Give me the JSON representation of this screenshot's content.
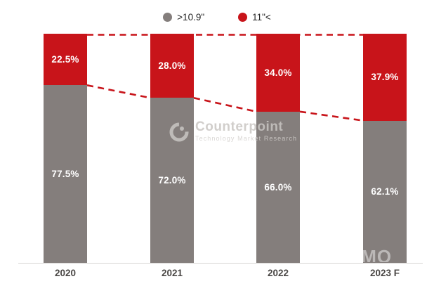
{
  "chart_data": {
    "type": "bar",
    "stacked": true,
    "stack_total": 100,
    "title": "",
    "xlabel": "",
    "ylabel": "",
    "ylim": [
      0,
      100
    ],
    "grid": false,
    "legend_position": "top-center",
    "categories": [
      "2020",
      "2021",
      "2022",
      "2023 F"
    ],
    "series": [
      {
        "name": ">10.9\"",
        "color": "#847e7c",
        "values": [
          77.5,
          72.0,
          66.0,
          62.1
        ],
        "labels": [
          "77.5%",
          "72.0%",
          "66.0%",
          "62.1%"
        ]
      },
      {
        "name": "11\"<",
        "color": "#c8141a",
        "values": [
          22.5,
          28.0,
          34.0,
          37.9
        ],
        "labels": [
          "22.5%",
          "28.0%",
          "34.0%",
          "37.9%"
        ]
      }
    ],
    "annotations": [
      "red dashed horizontal line along 100% tops between bars",
      "red dashed slanted lines connecting the red/gray segment boundaries between adjacent bars"
    ]
  },
  "legend": {
    "items": [
      {
        "label": ">10.9\"",
        "color": "#847e7c"
      },
      {
        "label": "11\"<",
        "color": "#c8141a"
      }
    ]
  },
  "watermark": {
    "brand": "Counterpoint",
    "tagline": "Technology Market Research"
  },
  "corner_watermark": {
    "text": "IMO"
  },
  "colors": {
    "bar_gray": "#847e7c",
    "bar_red": "#c8141a",
    "dashed_line": "#c8141a",
    "axis_line": "#d8d5d3",
    "x_label": "#4a4745",
    "value_label": "#ffffff",
    "watermark": "#c9c6c3",
    "background": "#ffffff"
  }
}
